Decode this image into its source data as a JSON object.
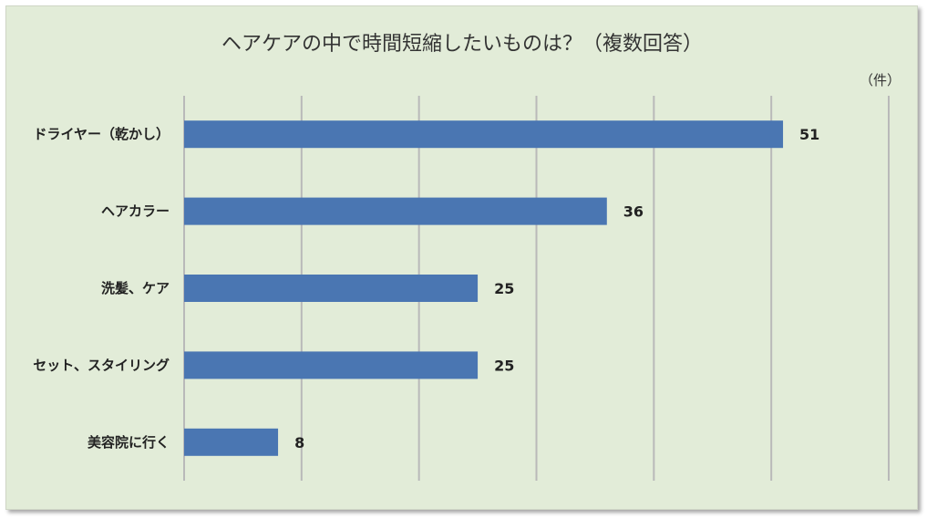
{
  "chart_data": {
    "type": "bar",
    "orientation": "horizontal",
    "title": "ヘアケアの中で時間短縮したいものは？（複数回答）",
    "unit_label": "（件）",
    "categories": [
      "ドライヤー（乾かし）",
      "ヘアカラー",
      "洗髪、ケア",
      "セット、スタイリング",
      "美容院に行く"
    ],
    "values": [
      51,
      36,
      25,
      25,
      8
    ],
    "xlim": [
      0,
      60
    ],
    "grid": true,
    "data_labels": true,
    "bar_color": "#4a76b2",
    "background_color": "#e2ecd8",
    "gridline_color": "#b9b9b9"
  }
}
